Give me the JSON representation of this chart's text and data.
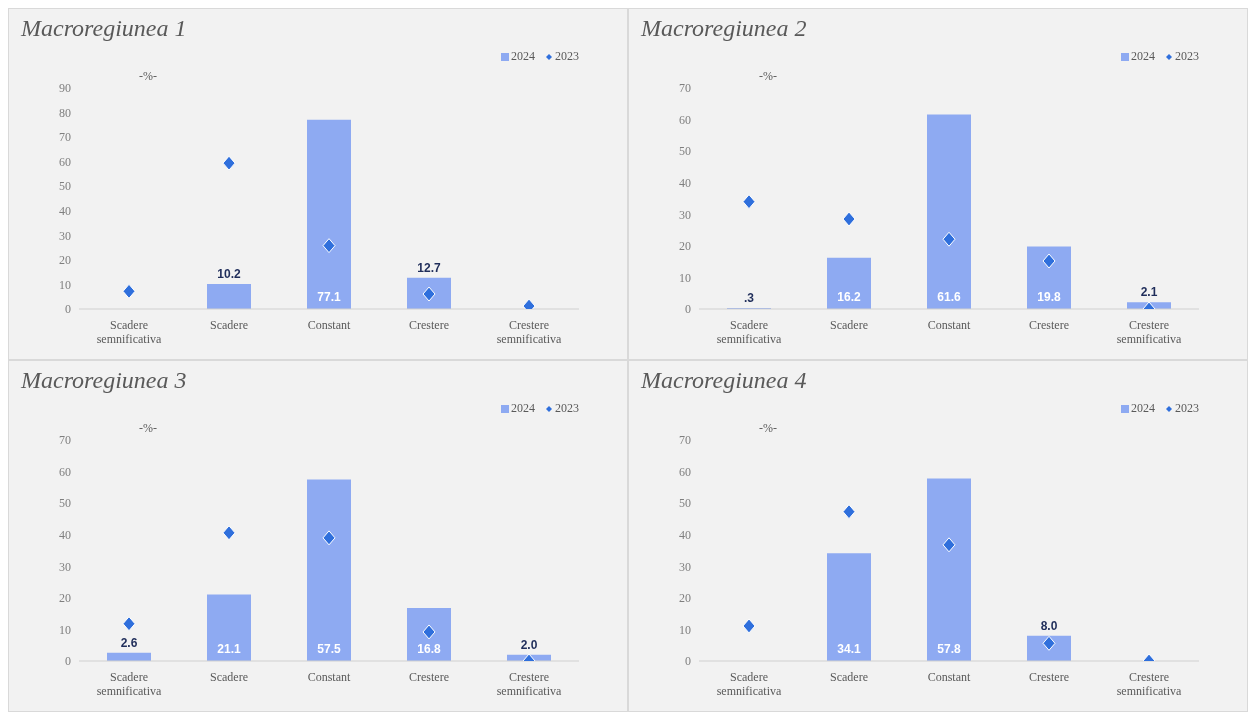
{
  "chart_data": [
    {
      "type": "bar",
      "title": "Macroregiunea 1",
      "annotations": [
        "-%-"
      ],
      "categories": [
        "Scadere semnificativa",
        "Scadere",
        "Constant",
        "Crestere",
        "Crestere semnificativa"
      ],
      "ylim": [
        0,
        90
      ],
      "yticks": [
        0,
        10,
        20,
        30,
        40,
        50,
        60,
        70,
        80,
        90
      ],
      "legend": "top right",
      "grid": false,
      "series": [
        {
          "name": "2024",
          "color": "#8eaaf2",
          "values": [
            0,
            10.2,
            77.1,
            12.7,
            0
          ],
          "value_labels": [
            null,
            "10.2",
            "77.1",
            "12.7",
            null
          ]
        },
        {
          "name": "2023",
          "type": "scatter",
          "marker": "diamond",
          "color": "#2f6fdc",
          "values": [
            7.2,
            59.4,
            25.8,
            6.1,
            1.2
          ]
        }
      ]
    },
    {
      "type": "bar",
      "title": "Macroregiunea 2",
      "annotations": [
        "-%-"
      ],
      "categories": [
        "Scadere semnificativa",
        "Scadere",
        "Constant",
        "Crestere",
        "Crestere semnificativa"
      ],
      "ylim": [
        0,
        70
      ],
      "yticks": [
        0,
        10,
        20,
        30,
        40,
        50,
        60,
        70
      ],
      "legend": "top right",
      "grid": false,
      "series": [
        {
          "name": "2024",
          "color": "#8eaaf2",
          "values": [
            0.3,
            16.2,
            61.6,
            19.8,
            2.1
          ],
          "value_labels": [
            ".3",
            "16.2",
            "61.6",
            "19.8",
            "2.1"
          ]
        },
        {
          "name": "2023",
          "type": "scatter",
          "marker": "diamond",
          "color": "#2f6fdc",
          "values": [
            34,
            28.5,
            22.1,
            15.2,
            0
          ]
        }
      ]
    },
    {
      "type": "bar",
      "title": "Macroregiunea 3",
      "annotations": [
        "-%-"
      ],
      "categories": [
        "Scadere semnificativa",
        "Scadere",
        "Constant",
        "Crestere",
        "Crestere semnificativa"
      ],
      "ylim": [
        0,
        70
      ],
      "yticks": [
        0,
        10,
        20,
        30,
        40,
        50,
        60,
        70
      ],
      "legend": "top right",
      "grid": false,
      "series": [
        {
          "name": "2024",
          "color": "#8eaaf2",
          "values": [
            2.6,
            21.1,
            57.5,
            16.8,
            2.0
          ],
          "value_labels": [
            "2.6",
            "21.1",
            "57.5",
            "16.8",
            "2.0"
          ]
        },
        {
          "name": "2023",
          "type": "scatter",
          "marker": "diamond",
          "color": "#2f6fdc",
          "values": [
            11.8,
            40.6,
            39.0,
            9.2,
            0
          ]
        }
      ]
    },
    {
      "type": "bar",
      "title": "Macroregiunea 4",
      "annotations": [
        "-%-"
      ],
      "categories": [
        "Scadere semnificativa",
        "Scadere",
        "Constant",
        "Crestere",
        "Crestere semnificativa"
      ],
      "ylim": [
        0,
        70
      ],
      "yticks": [
        0,
        10,
        20,
        30,
        40,
        50,
        60,
        70
      ],
      "legend": "top right",
      "grid": false,
      "series": [
        {
          "name": "2024",
          "color": "#8eaaf2",
          "values": [
            0,
            34.1,
            57.8,
            8.0,
            0
          ],
          "value_labels": [
            null,
            "34.1",
            "57.8",
            "8.0",
            null
          ]
        },
        {
          "name": "2023",
          "type": "scatter",
          "marker": "diamond",
          "color": "#2f6fdc",
          "values": [
            11.1,
            47.3,
            36.8,
            5.6,
            0
          ]
        }
      ]
    }
  ]
}
